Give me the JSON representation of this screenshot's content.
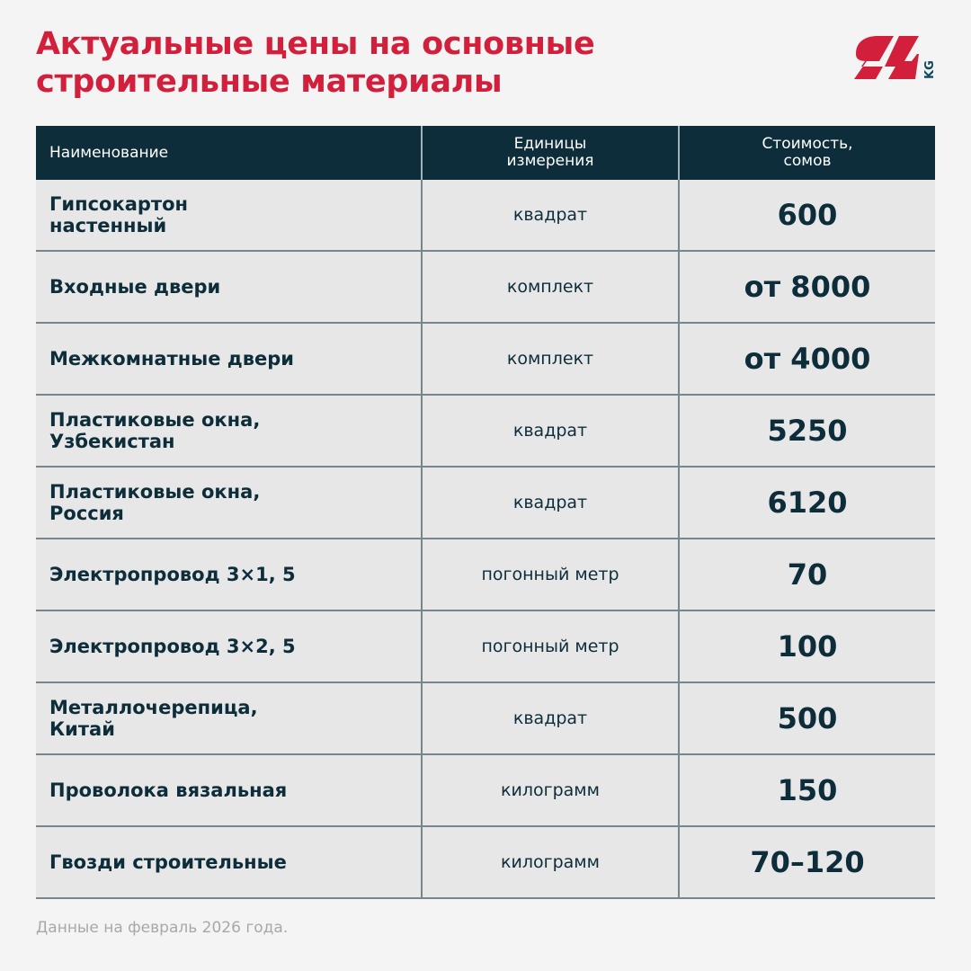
{
  "title": "Актуальные цены на основные строительные материалы",
  "logo": {
    "text": "24",
    "suffix": "KG",
    "color": "#d21f3c"
  },
  "table": {
    "headers": [
      "Наименование",
      "Единицы измерения",
      "Стоимость, сомов"
    ],
    "rows": [
      {
        "name": "Гипсокартон настенный",
        "unit": "квадрат",
        "price": "600"
      },
      {
        "name": "Входные двери",
        "unit": "комплект",
        "price": "от 8000"
      },
      {
        "name": "Межкомнатные двери",
        "unit": "комплект",
        "price": "от 4000"
      },
      {
        "name": "Пластиковые окна, Узбекистан",
        "unit": "квадрат",
        "price": "5250"
      },
      {
        "name": "Пластиковые окна, Россия",
        "unit": "квадрат",
        "price": "6120"
      },
      {
        "name": "Электропровод 3×1, 5",
        "unit": "погонный метр",
        "price": "70"
      },
      {
        "name": "Электропровод 3×2, 5",
        "unit": "погонный метр",
        "price": "100"
      },
      {
        "name": "Металлочерепица, Китай",
        "unit": "квадрат",
        "price": "500"
      },
      {
        "name": "Проволока вязальная",
        "unit": "килограмм",
        "price": "150"
      },
      {
        "name": "Гвозди строительные",
        "unit": "килограмм",
        "price": "70–120"
      }
    ]
  },
  "footer": "Данные на февраль 2026 года.",
  "colors": {
    "accent": "#d21f3c",
    "header_bg": "#0d2d3b",
    "row_bg": "#e7e7e7"
  }
}
